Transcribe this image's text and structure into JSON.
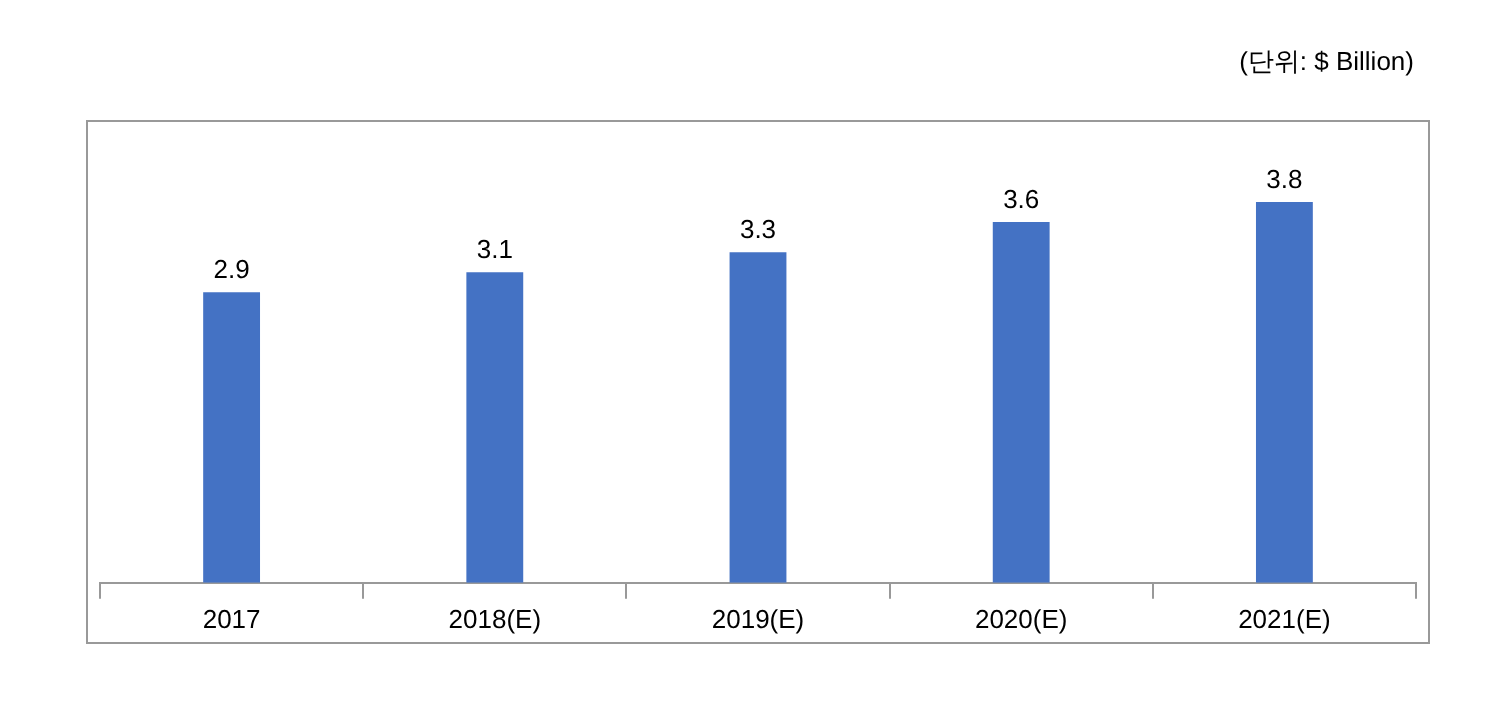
{
  "chart_data": {
    "type": "bar",
    "categories": [
      "2017",
      "2018(E)",
      "2019(E)",
      "2020(E)",
      "2021(E)"
    ],
    "values": [
      2.9,
      3.1,
      3.3,
      3.6,
      3.8
    ],
    "color": "#4472c4",
    "data_labels": true,
    "grid": false,
    "legend": false,
    "tick_labels": "x",
    "annotations": [
      "(단위: $ Billion)"
    ]
  }
}
